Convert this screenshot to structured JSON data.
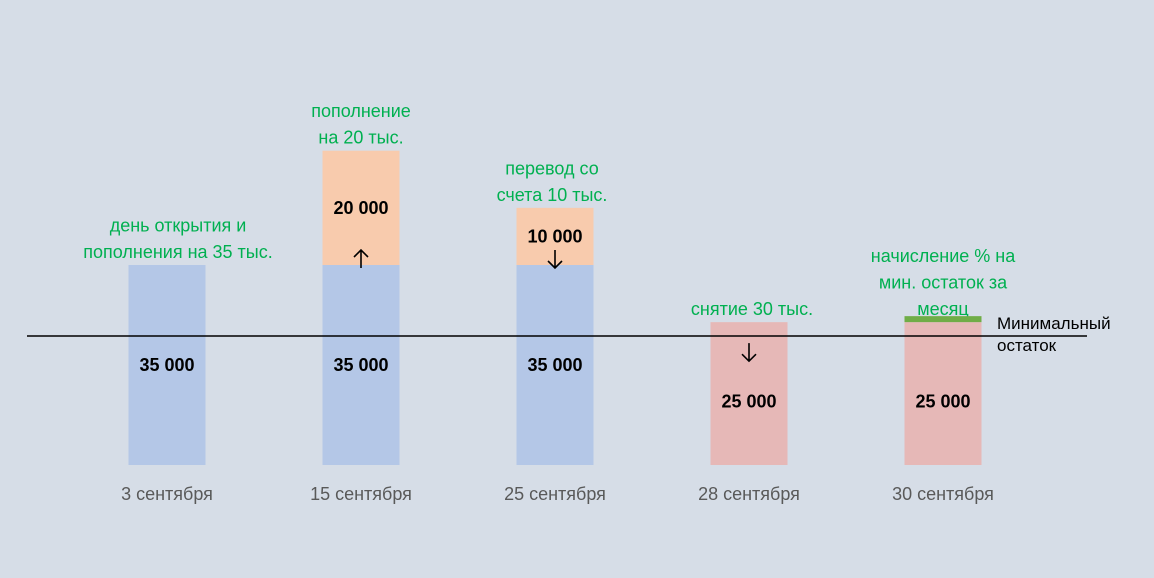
{
  "chart_data": {
    "type": "bar",
    "categories": [
      "3 сентября",
      "15 сентября",
      "25 сентября",
      "28 сентября",
      "30 сентября"
    ],
    "series": [
      {
        "values": [
          35000,
          35000,
          35000,
          25000,
          25000
        ]
      },
      {
        "values": [
          0,
          20000,
          10000,
          0,
          0
        ]
      }
    ],
    "value_labels": [
      [
        "35 000",
        "35 000",
        "35 000",
        "25 000",
        "25 000"
      ],
      [
        "",
        "20 000",
        "10 000",
        "",
        ""
      ]
    ],
    "annotations": [
      "день открытия и\nпополнения на 35 тыс.",
      "пополнение\nна 20 тыс.",
      "перевод со\nсчета 10 тыс.",
      "снятие 30 тыс.",
      "начисление % на\nмин. остаток за\nмесяц"
    ],
    "arrows": [
      "",
      "up",
      "down",
      "down",
      ""
    ],
    "minimum_balance": {
      "value": 25000,
      "label": [
        "Минимальный",
        "остаток"
      ]
    },
    "interest_marker_on": "30 сентября",
    "colors": {
      "base": "#b4c7e7",
      "top": "#f8cbad",
      "red": "#e6b8b7",
      "interest": "#70ad47",
      "annotation": "#00b050",
      "background": "#d6dde7"
    },
    "ylim": [
      0,
      55000
    ]
  }
}
